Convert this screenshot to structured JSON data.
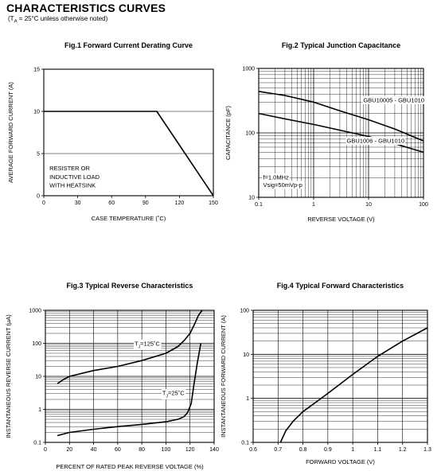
{
  "header": {
    "title": "CHARACTERISTICS CURVES",
    "subtitle_pre": "(T",
    "subtitle_sub": "A",
    "subtitle_post": " = 25°C unless otherwise noted)"
  },
  "colors": {
    "line": "#000000",
    "grid": "#000000",
    "background": "#ffffff"
  },
  "chart_data": [
    {
      "id": "fig1",
      "type": "line",
      "title": "Fig.1 Forward Current Derating Curve",
      "xlabel": "CASE TEMPERATURE (˚C)",
      "ylabel": "AVERAGE FORWARD CURRENT (A)",
      "xscale": "linear",
      "yscale": "linear",
      "xlim": [
        0,
        150
      ],
      "ylim": [
        0,
        15
      ],
      "xticks": [
        0,
        30,
        60,
        90,
        120,
        150
      ],
      "xtick_labels": [
        "0",
        "30",
        "60",
        "90",
        "120",
        "150"
      ],
      "yticks": [
        0,
        5,
        10,
        15
      ],
      "ytick_labels": [
        "0",
        "5",
        "10",
        "15"
      ],
      "xgrid": [],
      "ygrid": [
        5,
        10
      ],
      "series": [
        {
          "x": [
            0,
            100,
            150
          ],
          "y": [
            10,
            10,
            0
          ]
        }
      ],
      "annotations": [
        {
          "text": "RESISTER OR",
          "x": 5,
          "y": 3.0
        },
        {
          "text": "INDUCTIVE LOAD",
          "x": 5,
          "y": 2.0
        },
        {
          "text": "WITH HEATSINK",
          "x": 5,
          "y": 1.0
        }
      ]
    },
    {
      "id": "fig2",
      "type": "line",
      "title": "Fig.2 Typical Junction Capacitance",
      "xlabel": "REVERSE VOLTAGE (V)",
      "ylabel": "CAPACITANCE (pF)",
      "xscale": "log",
      "yscale": "log",
      "xlim": [
        0.1,
        100
      ],
      "ylim": [
        10,
        1000
      ],
      "xticks": [
        0.1,
        1,
        10,
        100
      ],
      "xtick_labels": [
        "0.1",
        "1",
        "10",
        "100"
      ],
      "yticks": [
        10,
        100,
        1000
      ],
      "ytick_labels": [
        "10",
        "100",
        "1000"
      ],
      "grid": "log",
      "series": [
        {
          "x": [
            0.1,
            0.3,
            1,
            3,
            10,
            30,
            100
          ],
          "y": [
            440,
            380,
            300,
            220,
            160,
            115,
            75
          ]
        },
        {
          "x": [
            0.1,
            0.3,
            1,
            3,
            10,
            30,
            100
          ],
          "y": [
            200,
            165,
            135,
            110,
            88,
            68,
            50
          ]
        }
      ],
      "annotations": [
        {
          "text": "GBU10005 - GBU1010",
          "x": 8,
          "y": 300
        },
        {
          "text": "GBU1006 - GBU1010",
          "x": 4,
          "y": 70
        },
        {
          "text": "f=1.0MHz",
          "x": 0.12,
          "y": 19
        },
        {
          "text": "Vsig=50mVp-p",
          "x": 0.12,
          "y": 14.5
        }
      ]
    },
    {
      "id": "fig3",
      "type": "line",
      "title": "Fig.3 Typical Reverse Characteristics",
      "xlabel": "PERCENT OF RATED PEAK REVERSE VOLTAGE (%)",
      "ylabel": "INSTANTANEOUS REVERSE CURRENT (µA)",
      "xscale": "linear",
      "yscale": "log",
      "xlim": [
        0,
        140
      ],
      "ylim": [
        0.1,
        1000
      ],
      "xticks": [
        0,
        20,
        40,
        60,
        80,
        100,
        120,
        140
      ],
      "xtick_labels": [
        "0",
        "20",
        "40",
        "60",
        "80",
        "100",
        "120",
        "140"
      ],
      "yticks": [
        0.1,
        1,
        10,
        100,
        1000
      ],
      "ytick_labels": [
        "0.1",
        "1",
        "10",
        "100",
        "1000"
      ],
      "xgrid": [
        20,
        40,
        60,
        80,
        100,
        120
      ],
      "grid": "log",
      "series": [
        {
          "name": "125C",
          "x": [
            10,
            15,
            20,
            40,
            60,
            80,
            100,
            110,
            115,
            120,
            124,
            127,
            130
          ],
          "y": [
            6,
            8,
            10,
            15,
            20,
            30,
            50,
            80,
            120,
            200,
            400,
            700,
            1000
          ]
        },
        {
          "name": "25C",
          "x": [
            10,
            20,
            40,
            60,
            80,
            100,
            110,
            115,
            118,
            121,
            123,
            126,
            129
          ],
          "y": [
            0.16,
            0.2,
            0.25,
            0.3,
            0.35,
            0.42,
            0.5,
            0.6,
            0.8,
            1.5,
            5,
            25,
            100
          ]
        }
      ],
      "annotations": [
        {
          "text": "T",
          "sub": "J",
          "after": "=125˚C",
          "x": 74,
          "y": 85
        },
        {
          "text": "T",
          "sub": "J",
          "after": "=25˚C",
          "x": 97,
          "y": 2.7
        }
      ]
    },
    {
      "id": "fig4",
      "type": "line",
      "title": "Fig.4 Typical Forward Characteristics",
      "xlabel": "FORWARD VOLTAGE (V)",
      "ylabel": "INSTANTANEOUS FORWARD CURRENT (A)",
      "xscale": "linear",
      "yscale": "log",
      "xlim": [
        0.6,
        1.3
      ],
      "ylim": [
        0.1,
        100
      ],
      "xticks": [
        0.6,
        0.7,
        0.8,
        0.9,
        1.0,
        1.1,
        1.2,
        1.3
      ],
      "xtick_labels": [
        "0.6",
        "0.7",
        "0.8",
        "0.9",
        "1",
        "1.1",
        "1.2",
        "1.3"
      ],
      "yticks": [
        0.1,
        1,
        10,
        100
      ],
      "ytick_labels": [
        "0.1",
        "1",
        "10",
        "100"
      ],
      "xgrid": [
        0.7,
        0.8,
        0.9,
        1.0,
        1.1,
        1.2
      ],
      "grid": "log",
      "series": [
        {
          "x": [
            0.71,
            0.73,
            0.76,
            0.8,
            0.85,
            0.9,
            1.0,
            1.1,
            1.2,
            1.3
          ],
          "y": [
            0.1,
            0.18,
            0.3,
            0.5,
            0.8,
            1.3,
            3.5,
            9,
            20,
            40
          ]
        }
      ],
      "annotations": []
    }
  ]
}
